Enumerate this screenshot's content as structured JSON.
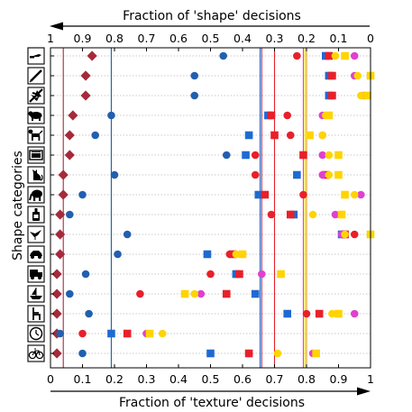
{
  "chart_data": {
    "type": "scatter",
    "top_axis": {
      "label": "Fraction of 'shape' decisions",
      "ticks": [
        "1",
        "0.9",
        "0.8",
        "0.7",
        "0.6",
        "0.5",
        "0.4",
        "0.3",
        "0.2",
        "0.1",
        "0"
      ]
    },
    "bottom_axis": {
      "label": "Fraction of 'texture' decisions",
      "ticks": [
        "0",
        "0.1",
        "0.2",
        "0.3",
        "0.4",
        "0.5",
        "0.6",
        "0.7",
        "0.8",
        "0.9",
        "1"
      ],
      "xlim": [
        0,
        1
      ]
    },
    "ylabel": "Shape categories",
    "categories": [
      "knife",
      "pencil",
      "airplane",
      "bear",
      "dog",
      "oven",
      "cat",
      "elephant",
      "bottle",
      "bird",
      "car",
      "truck",
      "boat",
      "chair",
      "clock",
      "bicycle"
    ],
    "grid": "horizontal dotted",
    "series": [
      {
        "key": "brown",
        "color": "#a52a3a",
        "marker": "diamond",
        "values": [
          0.13,
          0.11,
          0.11,
          0.07,
          0.06,
          0.06,
          0.04,
          0.04,
          0.03,
          0.03,
          0.03,
          0.02,
          0.02,
          0.02,
          0.02,
          0.02
        ]
      },
      {
        "key": "darkblue",
        "color": "#2160b0",
        "marker": "circle",
        "values": [
          0.54,
          0.45,
          0.45,
          0.19,
          0.14,
          0.55,
          0.2,
          0.1,
          0.06,
          0.24,
          0.21,
          0.11,
          0.06,
          0.12,
          0.03,
          0.1
        ]
      },
      {
        "key": "blue",
        "color": "#1e6ad2",
        "marker": "square",
        "values": [
          0.86,
          0.87,
          0.87,
          0.68,
          0.62,
          0.61,
          0.77,
          0.65,
          0.76,
          0.91,
          0.49,
          0.58,
          0.64,
          0.74,
          0.19,
          0.5
        ]
      },
      {
        "key": "red-circle",
        "color": "#e8202a",
        "marker": "circle",
        "values": [
          0.77,
          0.88,
          0.88,
          0.74,
          0.75,
          0.64,
          0.64,
          0.79,
          0.69,
          0.95,
          0.56,
          0.5,
          0.28,
          0.8,
          0.1,
          0.62
        ]
      },
      {
        "key": "red-square",
        "color": "#e8202a",
        "marker": "square",
        "values": [
          0.87,
          0.88,
          0.88,
          0.69,
          0.7,
          0.79,
          0.86,
          0.67,
          0.75,
          0.92,
          0.57,
          0.59,
          0.55,
          0.84,
          0.24,
          0.62
        ]
      },
      {
        "key": "magenta",
        "color": "#e040d0",
        "marker": "circle",
        "values": [
          0.95,
          0.95,
          0.98,
          0.85,
          0.85,
          0.85,
          0.85,
          0.97,
          0.89,
          0.91,
          0.6,
          0.66,
          0.47,
          0.95,
          0.3,
          0.82
        ]
      },
      {
        "key": "yellow-circle",
        "color": "#ffd400",
        "marker": "circle",
        "values": [
          0.89,
          0.96,
          0.97,
          0.86,
          0.85,
          0.87,
          0.87,
          0.95,
          0.82,
          0.92,
          0.58,
          0.72,
          0.45,
          0.88,
          0.35,
          0.71
        ]
      },
      {
        "key": "yellow-square",
        "color": "#ffd400",
        "marker": "square",
        "values": [
          0.92,
          1.0,
          0.99,
          0.87,
          0.81,
          0.9,
          0.9,
          0.92,
          0.91,
          1.0,
          0.6,
          0.72,
          0.42,
          0.9,
          0.31,
          0.83
        ]
      }
    ],
    "vlines": [
      {
        "x": 0.04,
        "color": "#a52a3a"
      },
      {
        "x": 0.19,
        "color": "#2160b0"
      },
      {
        "x": 0.655,
        "color": "#1e6ad2"
      },
      {
        "x": 0.66,
        "color": "#e8202a"
      },
      {
        "x": 0.7,
        "color": "#e8202a"
      },
      {
        "x": 0.79,
        "color": "#e040d0"
      },
      {
        "x": 0.795,
        "color": "#ffd400"
      },
      {
        "x": 0.8,
        "color": "#e8a000"
      }
    ]
  }
}
